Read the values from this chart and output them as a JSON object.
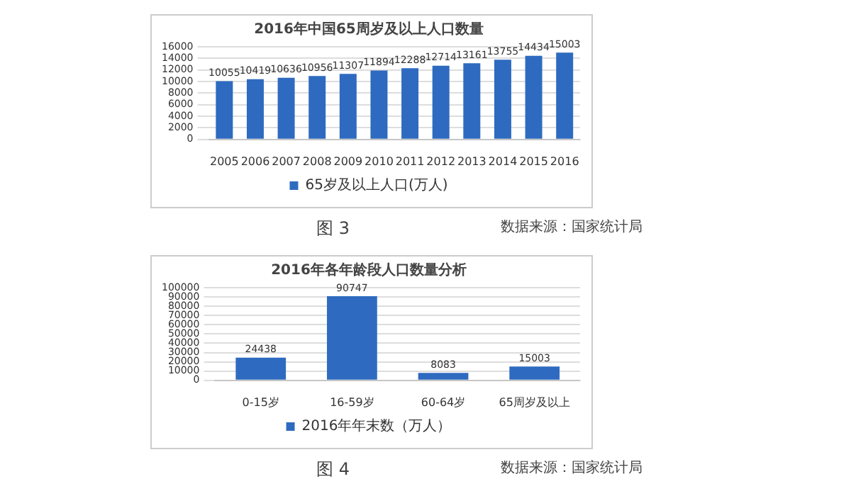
{
  "chart_data": [
    {
      "type": "bar",
      "title": "2016年中国65周岁及以上人口数量",
      "categories": [
        "2005",
        "2006",
        "2007",
        "2008",
        "2009",
        "2010",
        "2011",
        "2012",
        "2013",
        "2014",
        "2015",
        "2016"
      ],
      "series": [
        {
          "name": "65岁及以上人口(万人)",
          "color": "#2e6bc0",
          "values": [
            10055,
            10419,
            10636,
            10956,
            11307,
            11894,
            12288,
            12714,
            13161,
            13755,
            14434,
            15003
          ]
        }
      ],
      "ylim": [
        0,
        16000
      ],
      "yticks": [
        0,
        2000,
        4000,
        6000,
        8000,
        10000,
        12000,
        14000,
        16000
      ],
      "grid": "y",
      "legend": "bottom",
      "data_labels": true,
      "annotations": [
        "图 3",
        "数据来源：国家统计局"
      ]
    },
    {
      "type": "bar",
      "title": "2016年各年龄段人口数量分析",
      "categories": [
        "0-15岁",
        "16-59岁",
        "60-64岁",
        "65周岁及以上"
      ],
      "series": [
        {
          "name": "2016年年末数（万人）",
          "color": "#2e6bc0",
          "values": [
            24438,
            90747,
            8083,
            15003
          ]
        }
      ],
      "ylim": [
        0,
        100000
      ],
      "yticks": [
        0,
        10000,
        20000,
        30000,
        40000,
        50000,
        60000,
        70000,
        80000,
        90000,
        100000
      ],
      "grid": "y",
      "legend": "bottom",
      "data_labels": true,
      "annotations": [
        "图 4",
        "数据来源：国家统计局"
      ]
    }
  ]
}
